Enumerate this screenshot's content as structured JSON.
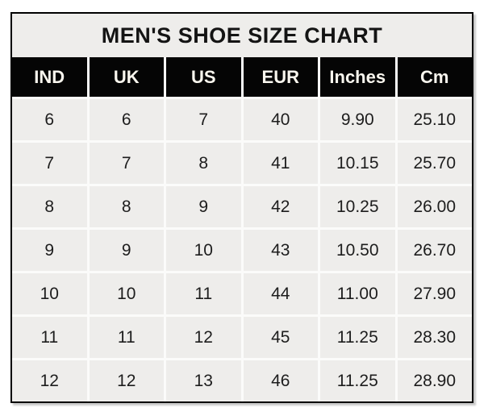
{
  "chart_data": {
    "type": "table",
    "title": "MEN'S SHOE SIZE CHART",
    "columns": [
      "IND",
      "UK",
      "US",
      "EUR",
      "Inches",
      "Cm"
    ],
    "rows": [
      [
        "6",
        "6",
        "7",
        "40",
        "9.90",
        "25.10"
      ],
      [
        "7",
        "7",
        "8",
        "41",
        "10.15",
        "25.70"
      ],
      [
        "8",
        "8",
        "9",
        "42",
        "10.25",
        "26.00"
      ],
      [
        "9",
        "9",
        "10",
        "43",
        "10.50",
        "26.70"
      ],
      [
        "10",
        "10",
        "11",
        "44",
        "11.00",
        "27.90"
      ],
      [
        "11",
        "11",
        "12",
        "45",
        "11.25",
        "28.30"
      ],
      [
        "12",
        "12",
        "13",
        "46",
        "11.25",
        "28.90"
      ]
    ],
    "layout": {
      "legend": "none",
      "grid": "cell-separators"
    },
    "colors": {
      "page_background": "#ffffff",
      "cell_background": "#eeedeb",
      "separator": "#fbfbfa",
      "header_background": "#050505",
      "header_text": "#f9f6ee",
      "body_text": "#1d1d1d",
      "border": "#000000"
    }
  }
}
